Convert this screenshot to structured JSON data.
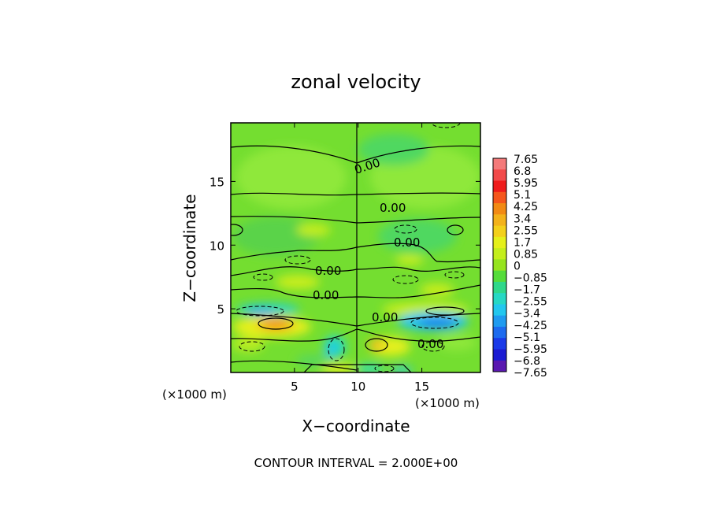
{
  "chart_data": {
    "type": "heatmap",
    "title": "zonal velocity",
    "xlabel": "X−coordinate",
    "ylabel": "Z−coordinate",
    "x_unit_note": "(×1000 m)",
    "z_unit_note": "(×1000 m)",
    "xlim": [
      0,
      19.6
    ],
    "zlim": [
      0,
      19.6
    ],
    "x_ticks": [
      5,
      10,
      15
    ],
    "z_ticks": [
      5,
      10,
      15
    ],
    "x_tick_labels": [
      "5",
      "10",
      "15"
    ],
    "z_tick_labels": [
      "5",
      "10",
      "15"
    ],
    "footer": "CONTOUR INTERVAL = 2.000E+00",
    "contour_label": "0.00",
    "colorbar": {
      "levels": [
        "7.65",
        "6.8",
        "5.95",
        "5.1",
        "4.25",
        "3.4",
        "2.55",
        "1.7",
        "0.85",
        "0",
        "−0.85",
        "−1.7",
        "−2.55",
        "−3.4",
        "−4.25",
        "−5.1",
        "−5.95",
        "−6.8",
        "−7.65"
      ],
      "colors": [
        "#f47a7a",
        "#f24a4a",
        "#ef1b1b",
        "#f5561c",
        "#f28a14",
        "#f3b21a",
        "#f3d01a",
        "#e5f01a",
        "#c4ee1c",
        "#96e41e",
        "#55dc3a",
        "#2fd88a",
        "#26d8c4",
        "#22c7ee",
        "#1f9bf0",
        "#1d6bef",
        "#1a3ae8",
        "#1b1bd2",
        "#5a18b0"
      ]
    },
    "features": [
      {
        "kind": "positive_max",
        "x": 3.7,
        "z": 3.8,
        "value": 3.4
      },
      {
        "kind": "positive_max",
        "x": 7.5,
        "z": 7.4,
        "value": 1.7
      },
      {
        "kind": "positive_max",
        "x": 13.5,
        "z": 2.2,
        "value": 1.7
      },
      {
        "kind": "positive_max",
        "x": 16.8,
        "z": 5.2,
        "value": 1.7
      },
      {
        "kind": "negative_min",
        "x": 17.2,
        "z": 3.7,
        "value": -3.4
      },
      {
        "kind": "negative_min",
        "x": 2.8,
        "z": 5.0,
        "value": -2.55
      },
      {
        "kind": "negative_min",
        "x": 8.0,
        "z": 2.0,
        "value": -1.7
      },
      {
        "kind": "negative_min",
        "x": 12.0,
        "z": 0.2,
        "value": -1.7
      }
    ]
  }
}
